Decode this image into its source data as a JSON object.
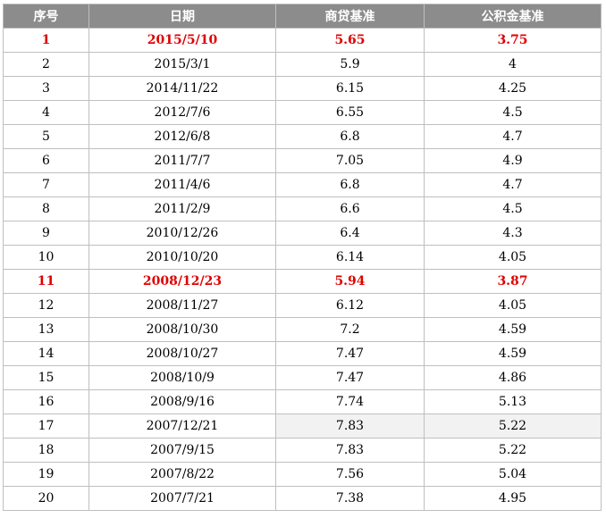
{
  "table": {
    "headers": [
      "序号",
      "日期",
      "商贷基准",
      "公积金基准"
    ],
    "highlight_color": "#e00000",
    "header_bg": "#8c8c8c",
    "rows": [
      {
        "idx": "1",
        "date": "2015/5/10",
        "commercial": "5.65",
        "fund": "3.75",
        "highlight": true
      },
      {
        "idx": "2",
        "date": "2015/3/1",
        "commercial": "5.9",
        "fund": "4"
      },
      {
        "idx": "3",
        "date": "2014/11/22",
        "commercial": "6.15",
        "fund": "4.25"
      },
      {
        "idx": "4",
        "date": "2012/7/6",
        "commercial": "6.55",
        "fund": "4.5"
      },
      {
        "idx": "5",
        "date": "2012/6/8",
        "commercial": "6.8",
        "fund": "4.7"
      },
      {
        "idx": "6",
        "date": "2011/7/7",
        "commercial": "7.05",
        "fund": "4.9"
      },
      {
        "idx": "7",
        "date": "2011/4/6",
        "commercial": "6.8",
        "fund": "4.7"
      },
      {
        "idx": "8",
        "date": "2011/2/9",
        "commercial": "6.6",
        "fund": "4.5"
      },
      {
        "idx": "9",
        "date": "2010/12/26",
        "commercial": "6.4",
        "fund": "4.3"
      },
      {
        "idx": "10",
        "date": "2010/10/20",
        "commercial": "6.14",
        "fund": "4.05"
      },
      {
        "idx": "11",
        "date": "2008/12/23",
        "commercial": "5.94",
        "fund": "3.87",
        "highlight": true
      },
      {
        "idx": "12",
        "date": "2008/11/27",
        "commercial": "6.12",
        "fund": "4.05"
      },
      {
        "idx": "13",
        "date": "2008/10/30",
        "commercial": "7.2",
        "fund": "4.59"
      },
      {
        "idx": "14",
        "date": "2008/10/27",
        "commercial": "7.47",
        "fund": "4.59"
      },
      {
        "idx": "15",
        "date": "2008/10/9",
        "commercial": "7.47",
        "fund": "4.86"
      },
      {
        "idx": "16",
        "date": "2008/9/16",
        "commercial": "7.74",
        "fund": "5.13"
      },
      {
        "idx": "17",
        "date": "2007/12/21",
        "commercial": "7.83",
        "fund": "5.22",
        "shaded": true
      },
      {
        "idx": "18",
        "date": "2007/9/15",
        "commercial": "7.83",
        "fund": "5.22"
      },
      {
        "idx": "19",
        "date": "2007/8/22",
        "commercial": "7.56",
        "fund": "5.04"
      },
      {
        "idx": "20",
        "date": "2007/7/21",
        "commercial": "7.38",
        "fund": "4.95"
      }
    ]
  }
}
